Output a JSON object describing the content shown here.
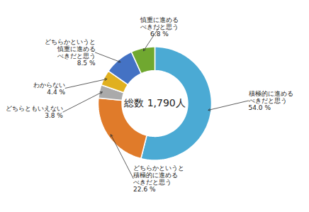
{
  "chart_data": {
    "type": "donut",
    "categories": [
      "積極的に進める\nべきだと思う",
      "どちらかというと\n積極的に進める\nべきだと思う",
      "どちらともいえない",
      "わからない",
      "どちらかというと\n慎重に進める\nべきだと思う",
      "慎重に進める\nべきだと思う"
    ],
    "values": [
      54.0,
      22.6,
      3.8,
      4.4,
      8.5,
      6.8
    ],
    "value_labels": [
      "54.0 %",
      "22.6 %",
      "3.8 %",
      "4.4 %",
      "8.5 %",
      "6.8 %"
    ],
    "data_labels": true,
    "colors": [
      "#4BAAD4",
      "#E07B2A",
      "#AAAAAA",
      "#E0B020",
      "#4472C4",
      "#70A830"
    ],
    "annotations": [
      "総数 1,790人"
    ]
  }
}
